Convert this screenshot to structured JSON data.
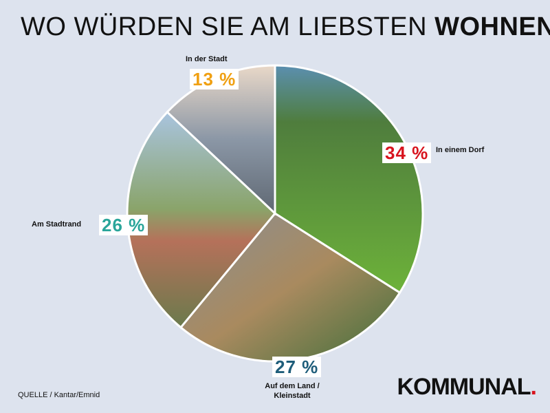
{
  "title": {
    "normal": "WO WÜRDEN SIE AM LIEBSTEN ",
    "bold": "WOHNEN?"
  },
  "source": "QUELLE / Kantar/Emnid",
  "logo": {
    "text": "KOMMUNAL",
    "dot": "."
  },
  "chart_data": {
    "type": "pie",
    "title": "WO WÜRDEN SIE AM LIEBSTEN WOHNEN?",
    "slices": [
      {
        "label": "In einem Dorf",
        "value": 34,
        "value_label": "34 %",
        "color": "#d8141e"
      },
      {
        "label": "Auf dem Land / Kleinstadt",
        "value": 27,
        "value_label": "27 %",
        "color": "#1e5d7a"
      },
      {
        "label": "Am Stadtrand",
        "value": 26,
        "value_label": "26 %",
        "color": "#2aa59a"
      },
      {
        "label": "In der Stadt",
        "value": 13,
        "value_label": "13 %",
        "color": "#f0a012"
      }
    ]
  }
}
